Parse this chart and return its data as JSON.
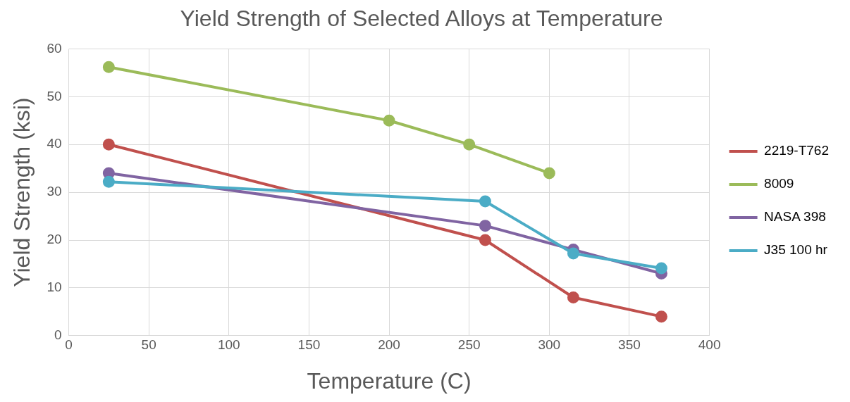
{
  "chart_data": {
    "type": "line",
    "title": "Yield Strength of Selected Alloys at Temperature",
    "xlabel": "Temperature (C)",
    "ylabel": "Yield Strength (ksi)",
    "xlim": [
      0,
      400
    ],
    "xticks": [
      0,
      50,
      100,
      150,
      200,
      250,
      300,
      350,
      400
    ],
    "ylim": [
      0,
      60
    ],
    "yticks": [
      0,
      10,
      20,
      30,
      40,
      50,
      60
    ],
    "grid": true,
    "legend": "right",
    "marker": "circle",
    "line_style": "solid",
    "series": [
      {
        "name": "2219-T762",
        "color": "#c0504d",
        "x": [
          25,
          260,
          315,
          370
        ],
        "values": [
          40,
          20,
          8,
          4
        ]
      },
      {
        "name": "8009",
        "color": "#9bbb59",
        "x": [
          25,
          200,
          250,
          300
        ],
        "values": [
          56.2,
          45,
          40,
          34
        ]
      },
      {
        "name": "NASA 398",
        "color": "#8064a2",
        "x": [
          25,
          260,
          315,
          370
        ],
        "values": [
          34,
          23,
          18,
          13
        ]
      },
      {
        "name": "J35 100 hr",
        "color": "#4bacc6",
        "x": [
          25,
          260,
          315,
          370
        ],
        "values": [
          32.2,
          28.1,
          17.2,
          14.1
        ]
      }
    ]
  }
}
